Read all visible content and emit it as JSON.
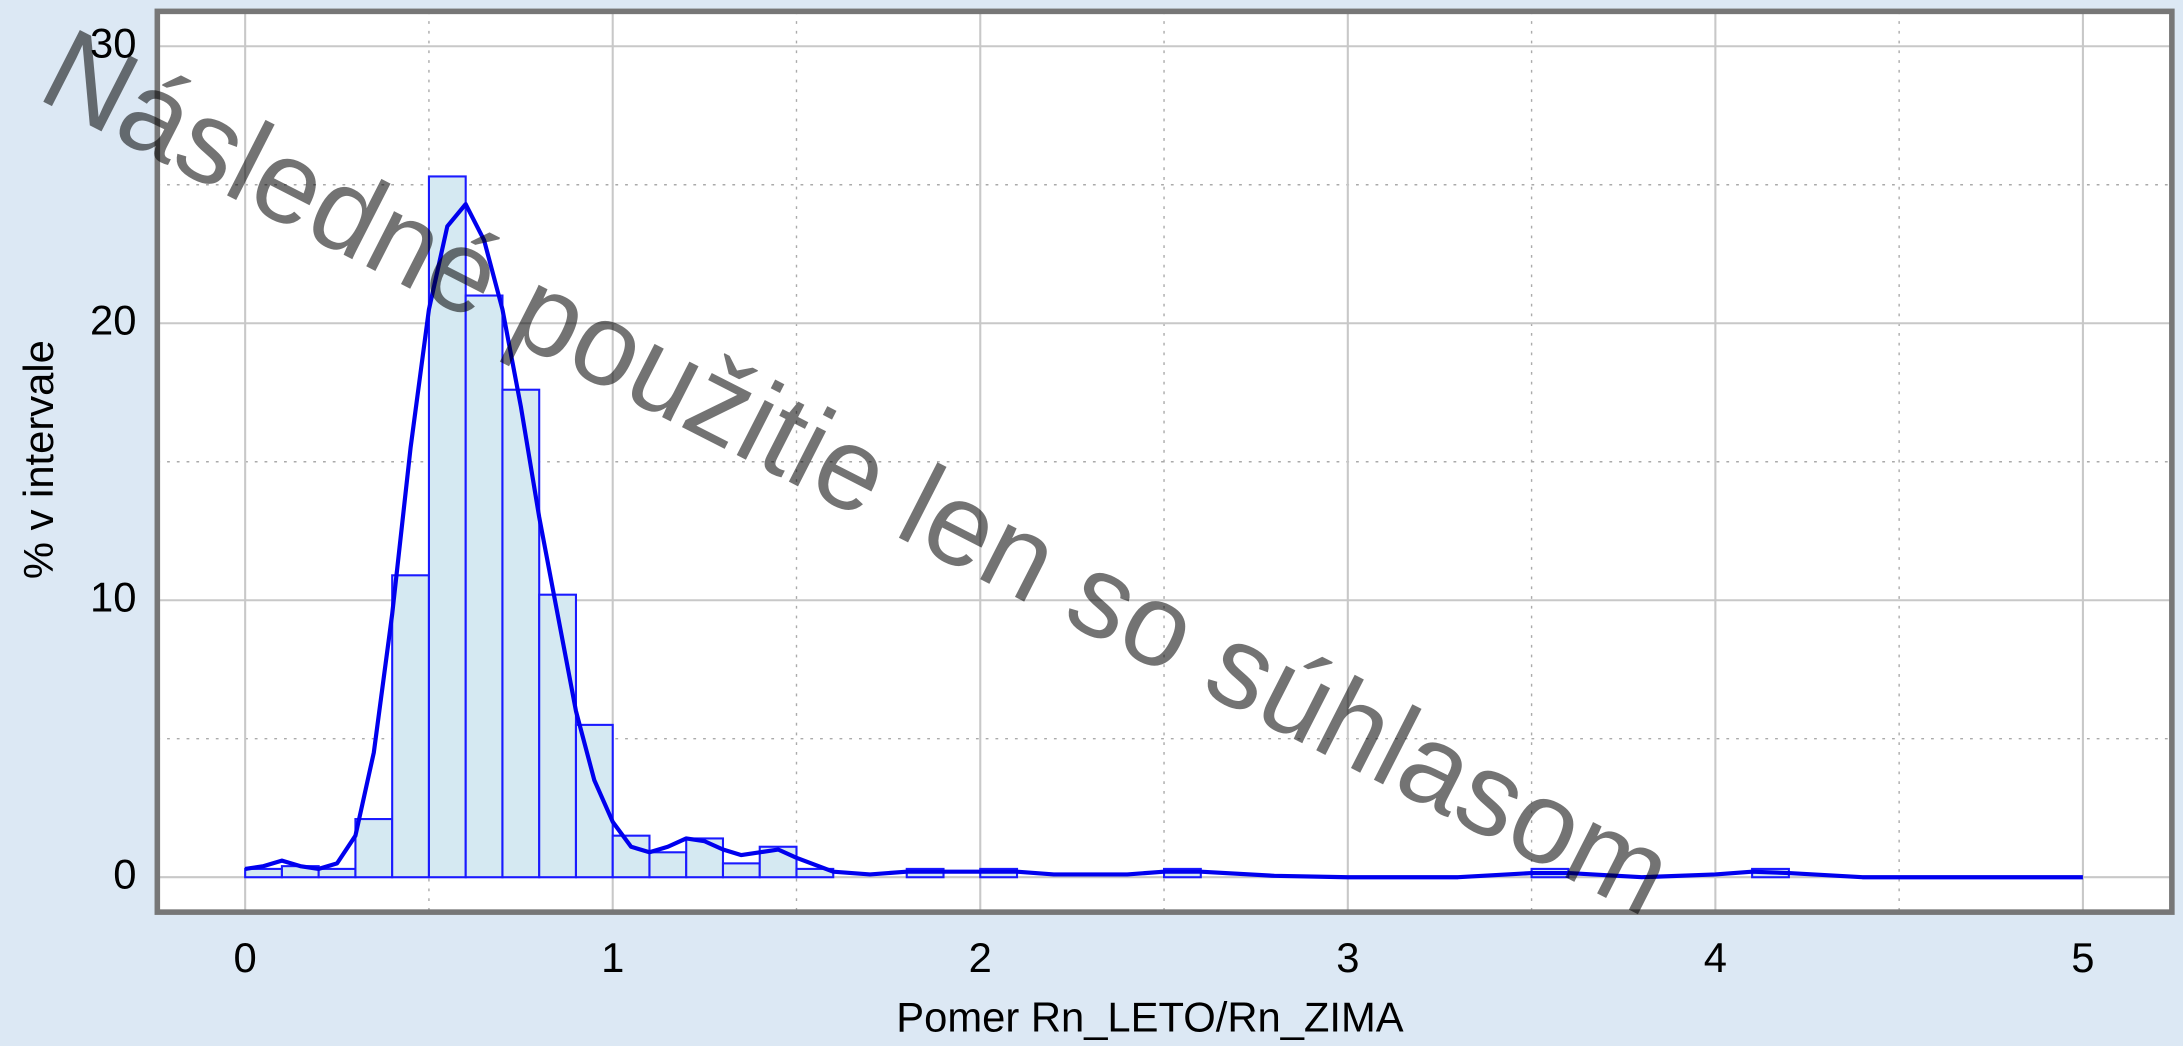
{
  "chart_data": {
    "type": "histogram",
    "xlabel": "Pomer Rn_LETO/Rn_ZIMA",
    "ylabel": "% v intervale",
    "watermark": "Následné použitie len so súhlasom",
    "bins": [
      0,
      0.1,
      0.2,
      0.3,
      0.4,
      0.5,
      0.6,
      0.7,
      0.8,
      0.9,
      1.0,
      1.1,
      1.2,
      1.3,
      1.4,
      1.5,
      1.6,
      1.7,
      1.8,
      1.9,
      2.0,
      2.1,
      2.2,
      2.3,
      2.4,
      2.5,
      2.6,
      2.7,
      2.8,
      2.9,
      3.0,
      3.1,
      3.2,
      3.3,
      3.4,
      3.5,
      3.6,
      3.7,
      3.8,
      3.9,
      4.0,
      4.1,
      4.2,
      4.3
    ],
    "values": [
      0.3,
      0.4,
      0.3,
      2.1,
      10.9,
      25.3,
      21.0,
      17.6,
      10.2,
      5.5,
      1.5,
      0.9,
      1.4,
      0.5,
      1.1,
      0.3,
      0,
      0,
      0.3,
      0,
      0.3,
      0,
      0,
      0,
      0,
      0.3,
      0,
      0,
      0,
      0,
      0,
      0,
      0,
      0,
      0,
      0.3,
      0,
      0,
      0,
      0,
      0,
      0.3,
      0
    ],
    "color": "#d5e9f2",
    "edgecolor": "#1a1aff",
    "curve": {
      "color": "#0000ee",
      "x": [
        0,
        0.05,
        0.1,
        0.15,
        0.2,
        0.25,
        0.3,
        0.35,
        0.4,
        0.45,
        0.5,
        0.55,
        0.6,
        0.65,
        0.7,
        0.75,
        0.8,
        0.85,
        0.9,
        0.95,
        1.0,
        1.05,
        1.1,
        1.15,
        1.2,
        1.25,
        1.3,
        1.35,
        1.4,
        1.45,
        1.5,
        1.6,
        1.7,
        1.8,
        1.9,
        2.0,
        2.1,
        2.2,
        2.4,
        2.5,
        2.6,
        2.8,
        3.0,
        3.3,
        3.5,
        3.6,
        3.8,
        4.0,
        4.1,
        4.2,
        4.4,
        5.0
      ],
      "values": [
        0.3,
        0.4,
        0.6,
        0.4,
        0.3,
        0.5,
        1.5,
        4.5,
        9.5,
        15.5,
        20.5,
        23.5,
        24.3,
        23,
        20.5,
        17,
        13,
        9.5,
        6,
        3.5,
        2,
        1.1,
        0.9,
        1.1,
        1.4,
        1.3,
        1,
        0.8,
        0.9,
        1,
        0.7,
        0.2,
        0.1,
        0.2,
        0.2,
        0.2,
        0.2,
        0.1,
        0.1,
        0.2,
        0.2,
        0.05,
        0,
        0,
        0.15,
        0.15,
        0,
        0.1,
        0.2,
        0.15,
        0,
        0
      ]
    },
    "xlim": [
      -0.239,
      5.242
    ],
    "ylim": [
      -1.26,
      31.26
    ],
    "xticks": [
      0,
      1,
      2,
      3,
      4,
      5
    ],
    "yticks": [
      0,
      10,
      20,
      30
    ],
    "xminorticks": [
      0.5,
      1.5,
      2.5,
      3.5,
      4.5
    ],
    "yminorticks": [
      5,
      15,
      25
    ],
    "grid": true
  }
}
